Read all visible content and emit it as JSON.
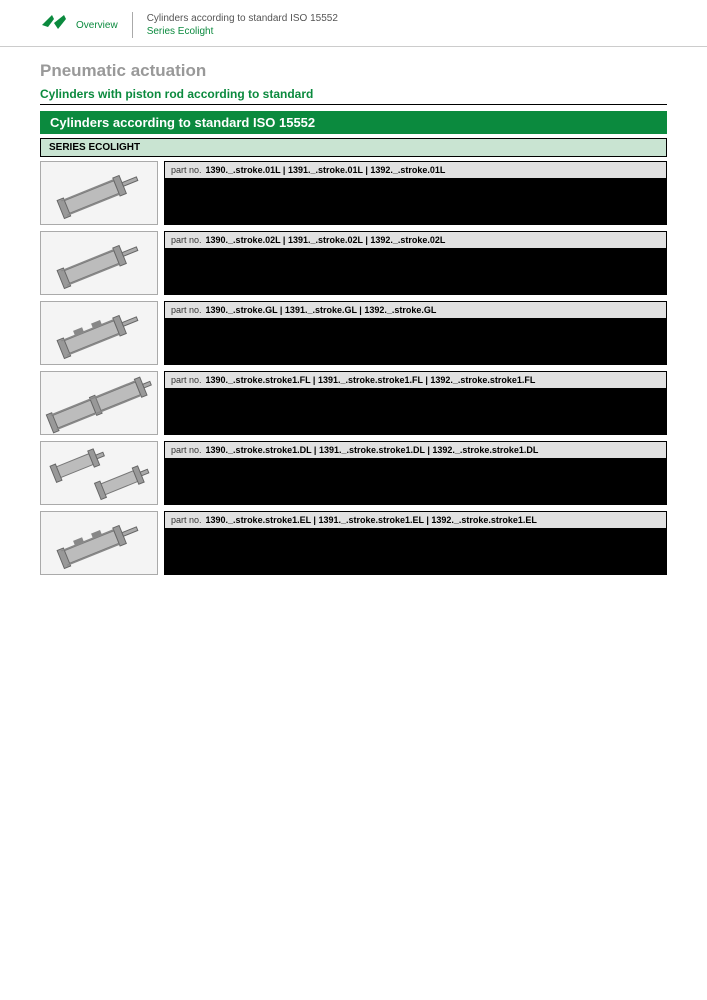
{
  "header": {
    "overview_label": "Overview",
    "line1": "Cylinders according to standard ISO 15552",
    "line2": "Series Ecolight"
  },
  "colors": {
    "brand_green": "#0b8a3e",
    "light_green": "#c9e4d2",
    "light_gray": "#e1e1e1",
    "muted_gray": "#999999"
  },
  "headings": {
    "h1": "Pneumatic actuation",
    "h2": "Cylinders with piston rod according to standard",
    "section_bar": "Cylinders according to standard ISO 15552",
    "series_bar": "SERIES ECOLIGHT"
  },
  "partno_label": "part no.",
  "products": [
    {
      "image_type": "single-straight",
      "codes": [
        "1390._.stroke.01L",
        "1391._.stroke.01L",
        "1392._.stroke.01L"
      ]
    },
    {
      "image_type": "single-straight",
      "codes": [
        "1390._.stroke.02L",
        "1391._.stroke.02L",
        "1392._.stroke.02L"
      ]
    },
    {
      "image_type": "single-guided",
      "codes": [
        "1390._.stroke.GL",
        "1391._.stroke.GL",
        "1392._.stroke.GL"
      ]
    },
    {
      "image_type": "tandem",
      "codes": [
        "1390._.stroke.stroke1.FL",
        "1391._.stroke.stroke1.FL",
        "1392._.stroke.stroke1.FL"
      ]
    },
    {
      "image_type": "tandem-sep",
      "codes": [
        "1390._.stroke.stroke1.DL",
        "1391._.stroke.stroke1.DL",
        "1392._.stroke.stroke1.DL"
      ]
    },
    {
      "image_type": "single-guided",
      "codes": [
        "1390._.stroke.stroke1.EL",
        "1391._.stroke.stroke1.EL",
        "1392._.stroke.stroke1.EL"
      ]
    }
  ]
}
